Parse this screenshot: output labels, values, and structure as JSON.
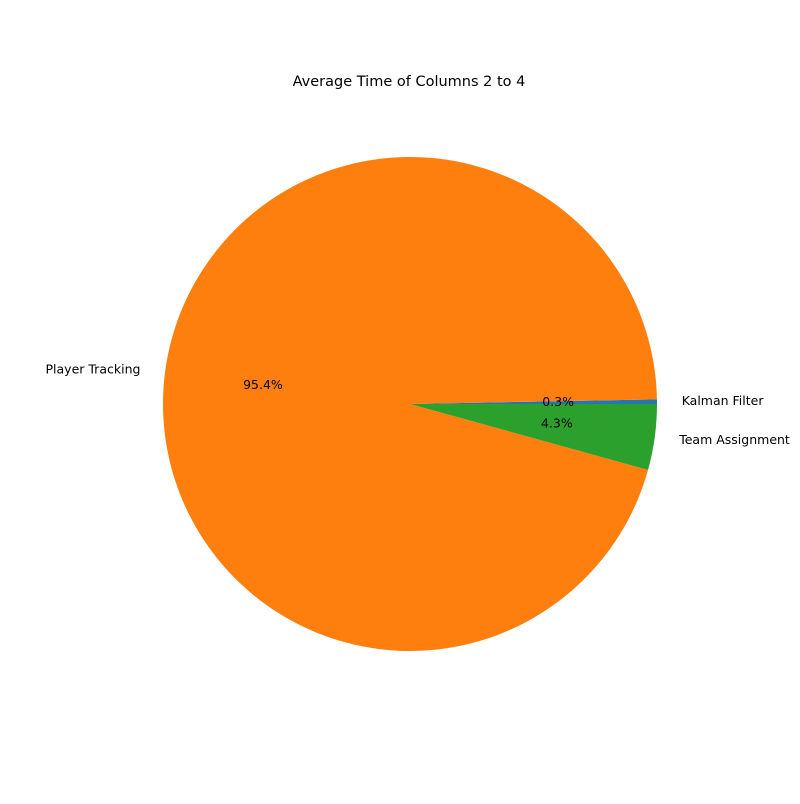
{
  "chart_data": {
    "type": "pie",
    "title": "Average Time of Columns 2 to 4",
    "slices": [
      {
        "label": "Kalman Filter",
        "value": 0.3,
        "pct_label": "0.3%",
        "color": "#1f77b4"
      },
      {
        "label": "Player Tracking",
        "value": 95.4,
        "pct_label": "95.4%",
        "color": "#ff7f0e"
      },
      {
        "label": "Team Assignment",
        "value": 4.3,
        "pct_label": "4.3%",
        "color": "#2ca02c"
      }
    ],
    "start_angle_deg": 0,
    "direction": "counterclockwise",
    "legend": "none"
  }
}
